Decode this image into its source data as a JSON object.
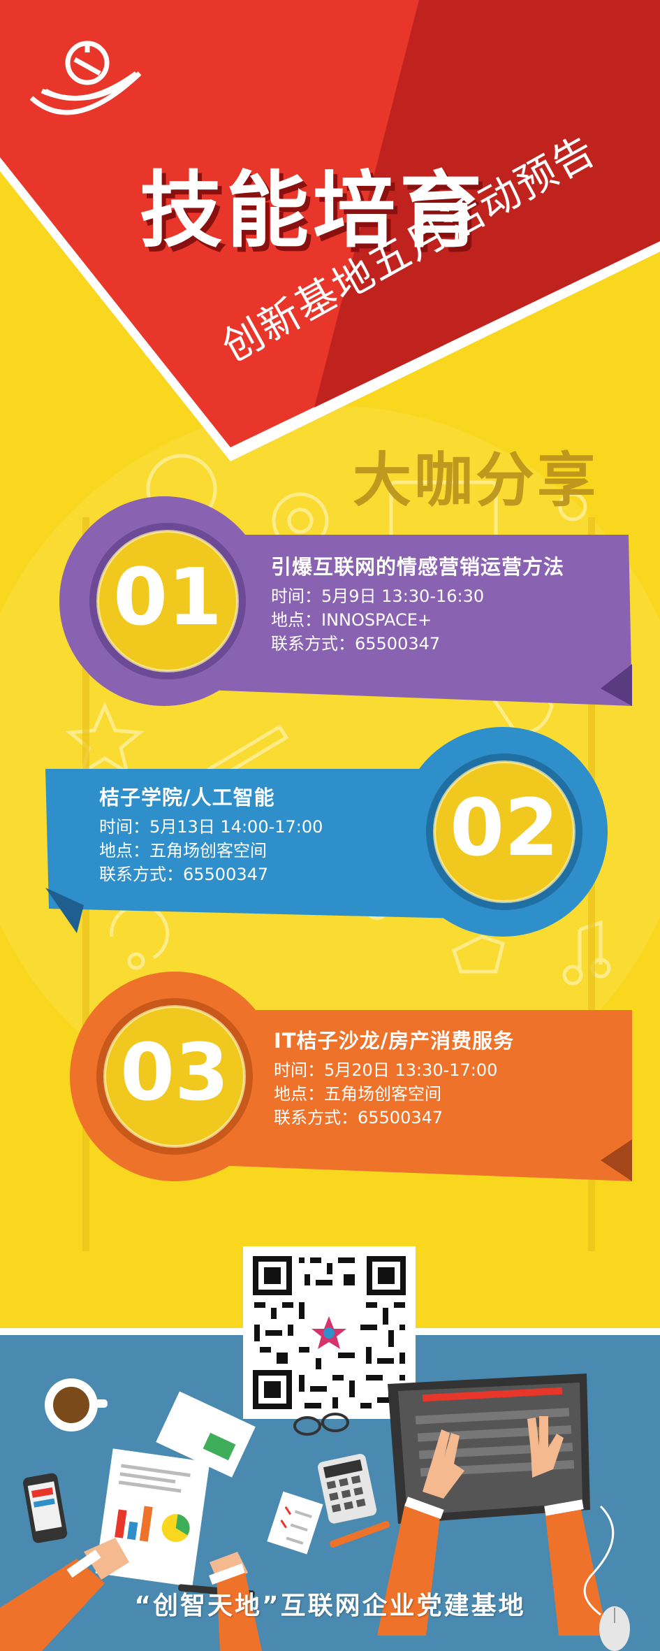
{
  "poster": {
    "title": "技能培育",
    "subtitle": "创新基地五月活动预告",
    "section_label": "大咖分享",
    "footer": "“创智天地”互联网企业党建基地"
  },
  "events": [
    {
      "number": "01",
      "title": "引爆互联网的情感营销运营方法",
      "time": "时间：5月9日 13:30-16:30",
      "place": "地点：INNOSPACE+",
      "contact": "联系方式：65500347",
      "color": "#8a62b2"
    },
    {
      "number": "02",
      "title": "桔子学院/人工智能",
      "time": "时间：5月13日 14:00-17:00",
      "place": "地点：五角场创客空间",
      "contact": "联系方式：65500347",
      "color": "#2f8fca"
    },
    {
      "number": "03",
      "title": "IT桔子沙龙/房产消费服务",
      "time": "时间：5月20日 13:30-17:00",
      "place": "地点：五角场创客空间",
      "contact": "联系方式：65500347",
      "color": "#ee7229"
    }
  ],
  "colors": {
    "background": "#f9d71f",
    "banner_red": "#e8362a",
    "banner_dark_red": "#c0231d",
    "footer_blue": "#4a8ab0"
  },
  "icons": [
    "party-emblem-icon",
    "qr-code",
    "laptop-icon",
    "coffee-cup-icon",
    "calculator-icon",
    "smartphone-icon",
    "mouse-icon",
    "glasses-icon"
  ]
}
